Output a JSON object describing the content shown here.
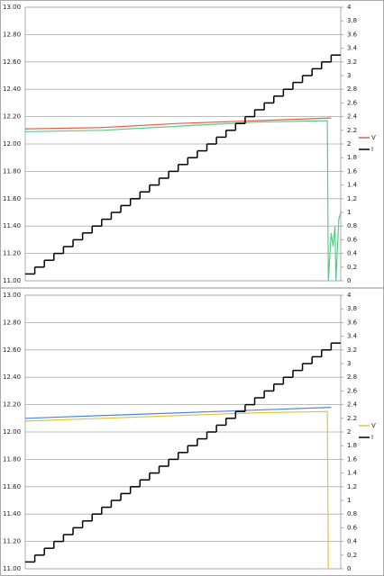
{
  "chart_data": [
    {
      "type": "line",
      "grid": true,
      "legend": "right",
      "xlim": [
        0,
        33
      ],
      "ylim": [
        11,
        13
      ],
      "yticks": [
        {
          "value": 11,
          "label": "11.00"
        },
        {
          "value": 11.2,
          "label": "11.20"
        },
        {
          "value": 11.4,
          "label": "11.40"
        },
        {
          "value": 11.6,
          "label": "11.60"
        },
        {
          "value": 11.8,
          "label": "11.80"
        },
        {
          "value": 12,
          "label": "12.00"
        },
        {
          "value": 12.2,
          "label": "12.20"
        },
        {
          "value": 12.4,
          "label": "12.40"
        },
        {
          "value": 12.6,
          "label": "12.60"
        },
        {
          "value": 12.8,
          "label": "12.80"
        },
        {
          "value": 13,
          "label": "13.00"
        }
      ],
      "y2lim": [
        0,
        4
      ],
      "y2ticks": [
        0,
        0.2,
        0.4,
        0.6,
        0.8,
        1,
        1.2,
        1.4,
        1.6,
        1.8,
        2,
        2.2,
        2.4,
        2.6,
        2.8,
        3,
        3.2,
        3.4,
        3.6,
        3.8,
        4
      ],
      "series": [
        {
          "name": "V",
          "color": "#e0604a",
          "x": [
            0,
            8,
            16,
            24,
            32
          ],
          "values": [
            12.11,
            12.12,
            12.15,
            12.17,
            12.19
          ]
        },
        {
          "color": "#5cc98c",
          "x": [
            0,
            8,
            16,
            24,
            31.6,
            31.7,
            32,
            32.2,
            32.4,
            32.5,
            32.8,
            33
          ],
          "values": [
            12.09,
            12.1,
            12.13,
            12.16,
            12.17,
            11.0,
            11.35,
            11.25,
            11.4,
            11.0,
            11.45,
            11.5
          ]
        },
        {
          "name": "I",
          "color": "#000000",
          "axis": "y2",
          "step": true,
          "x": [
            0,
            1,
            2,
            3,
            4,
            5,
            6,
            7,
            8,
            9,
            10,
            11,
            12,
            13,
            14,
            15,
            16,
            17,
            18,
            19,
            20,
            21,
            22,
            23,
            24,
            25,
            26,
            27,
            28,
            29,
            30,
            31,
            32,
            33
          ],
          "values": [
            0.1,
            0.2,
            0.3,
            0.4,
            0.5,
            0.6,
            0.7,
            0.8,
            0.9,
            1,
            1.1,
            1.2,
            1.3,
            1.4,
            1.5,
            1.6,
            1.7,
            1.8,
            1.9,
            2,
            2.1,
            2.2,
            2.3,
            2.4,
            2.5,
            2.6,
            2.7,
            2.8,
            2.9,
            3,
            3.1,
            3.2,
            3.3,
            3.3
          ]
        }
      ]
    },
    {
      "type": "line",
      "grid": true,
      "legend": "right",
      "xlim": [
        0,
        33
      ],
      "ylim": [
        11,
        13
      ],
      "yticks": [
        {
          "value": 11,
          "label": "11.00"
        },
        {
          "value": 11.2,
          "label": "11.20"
        },
        {
          "value": 11.4,
          "label": "11.40"
        },
        {
          "value": 11.6,
          "label": "11.60"
        },
        {
          "value": 11.8,
          "label": "11.80"
        },
        {
          "value": 12,
          "label": "12.00"
        },
        {
          "value": 12.2,
          "label": "12.20"
        },
        {
          "value": 12.4,
          "label": "12.40"
        },
        {
          "value": 12.6,
          "label": "12.60"
        },
        {
          "value": 12.8,
          "label": "12.80"
        },
        {
          "value": 13,
          "label": "13.00"
        }
      ],
      "y2lim": [
        0,
        4
      ],
      "y2ticks": [
        0,
        0.2,
        0.4,
        0.6,
        0.8,
        1,
        1.2,
        1.4,
        1.6,
        1.8,
        2,
        2.2,
        2.4,
        2.6,
        2.8,
        3,
        3.2,
        3.4,
        3.6,
        3.8,
        4
      ],
      "series": [
        {
          "color": "#4a88d8",
          "x": [
            0,
            8,
            16,
            24,
            32
          ],
          "values": [
            12.1,
            12.12,
            12.14,
            12.16,
            12.18
          ]
        },
        {
          "name": "V",
          "color": "#e8c040",
          "x": [
            0,
            8,
            16,
            24,
            31.6,
            31.7
          ],
          "values": [
            12.08,
            12.1,
            12.12,
            12.14,
            12.15,
            11.0
          ]
        },
        {
          "name": "I",
          "color": "#000000",
          "axis": "y2",
          "step": true,
          "x": [
            0,
            1,
            2,
            3,
            4,
            5,
            6,
            7,
            8,
            9,
            10,
            11,
            12,
            13,
            14,
            15,
            16,
            17,
            18,
            19,
            20,
            21,
            22,
            23,
            24,
            25,
            26,
            27,
            28,
            29,
            30,
            31,
            32,
            33
          ],
          "values": [
            0.1,
            0.2,
            0.3,
            0.4,
            0.5,
            0.6,
            0.7,
            0.8,
            0.9,
            1,
            1.1,
            1.2,
            1.3,
            1.4,
            1.5,
            1.6,
            1.7,
            1.8,
            1.9,
            2,
            2.1,
            2.2,
            2.3,
            2.4,
            2.5,
            2.6,
            2.7,
            2.8,
            2.9,
            3,
            3.1,
            3.2,
            3.3,
            3.3
          ]
        }
      ]
    }
  ]
}
